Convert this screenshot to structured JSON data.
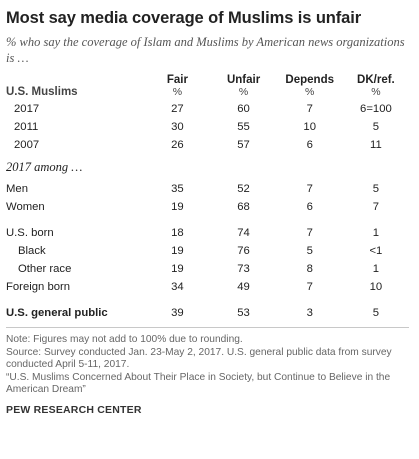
{
  "title": "Most say media coverage of Muslims is unfair",
  "subtitle": "% who say the coverage of Islam and Muslims by American news organizations is …",
  "chart_data": {
    "type": "table",
    "columns": [
      "Fair",
      "Unfair",
      "Depends",
      "DK/ref."
    ],
    "units": [
      "%",
      "%",
      "%",
      "%"
    ],
    "rows": [
      {
        "label": "U.S. Muslims",
        "values": [
          "",
          "",
          "",
          ""
        ]
      },
      {
        "label": "2017",
        "values": [
          "27",
          "60",
          "7",
          "6=100"
        ]
      },
      {
        "label": "2011",
        "values": [
          "30",
          "55",
          "10",
          "5"
        ]
      },
      {
        "label": "2007",
        "values": [
          "26",
          "57",
          "6",
          "11"
        ]
      },
      {
        "label": "2017 among …",
        "values": [
          "",
          "",
          "",
          ""
        ]
      },
      {
        "label": "Men",
        "values": [
          "35",
          "52",
          "7",
          "5"
        ]
      },
      {
        "label": "Women",
        "values": [
          "19",
          "68",
          "6",
          "7"
        ]
      },
      {
        "label": "U.S. born",
        "values": [
          "18",
          "74",
          "7",
          "1"
        ]
      },
      {
        "label": "Black",
        "values": [
          "19",
          "76",
          "5",
          "<1"
        ]
      },
      {
        "label": "Other race",
        "values": [
          "19",
          "73",
          "8",
          "1"
        ]
      },
      {
        "label": "Foreign born",
        "values": [
          "34",
          "49",
          "7",
          "10"
        ]
      },
      {
        "label": "U.S. general public",
        "values": [
          "39",
          "53",
          "3",
          "5"
        ]
      }
    ]
  },
  "notes": [
    "Note: Figures may not add to 100% due to rounding.",
    "Source: Survey conducted Jan. 23-May 2, 2017. U.S. general public data from survey conducted April 5-11, 2017.",
    "“U.S. Muslims Concerned About Their Place in Society, but Continue to Believe in the American Dream”"
  ],
  "brand": "PEW RESEARCH CENTER"
}
